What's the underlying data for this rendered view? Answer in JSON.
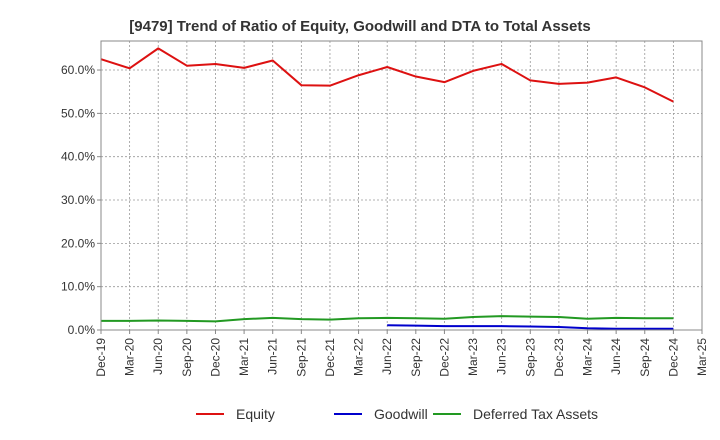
{
  "chart_data": {
    "type": "line",
    "title": "[9479]  Trend of Ratio of Equity, Goodwill and DTA to Total Assets",
    "xlabel": "",
    "ylabel": "",
    "ylim": [
      0,
      66.7
    ],
    "y_ticks": [
      "0.0%",
      "10.0%",
      "20.0%",
      "30.0%",
      "40.0%",
      "50.0%",
      "60.0%"
    ],
    "y_tick_values": [
      0,
      10,
      20,
      30,
      40,
      50,
      60
    ],
    "grid": true,
    "legend_position": "bottom",
    "categories": [
      "Dec-19",
      "Mar-20",
      "Jun-20",
      "Sep-20",
      "Dec-20",
      "Mar-21",
      "Jun-21",
      "Sep-21",
      "Dec-21",
      "Mar-22",
      "Jun-22",
      "Sep-22",
      "Dec-22",
      "Mar-23",
      "Jun-23",
      "Sep-23",
      "Dec-23",
      "Mar-24",
      "Jun-24",
      "Sep-24",
      "Dec-24",
      "Mar-25"
    ],
    "series": [
      {
        "name": "Equity",
        "color": "#dd1111",
        "values": [
          62.5,
          60.4,
          65.0,
          61.0,
          61.4,
          60.5,
          62.2,
          56.5,
          56.4,
          58.8,
          60.7,
          58.5,
          57.2,
          59.8,
          61.4,
          57.6,
          56.8,
          57.1,
          58.3,
          56.0,
          52.7,
          null
        ]
      },
      {
        "name": "Goodwill",
        "color": "#0000cc",
        "values": [
          null,
          null,
          null,
          null,
          null,
          null,
          null,
          null,
          null,
          null,
          1.1,
          1.0,
          0.9,
          0.9,
          0.9,
          0.8,
          0.7,
          0.4,
          0.3,
          0.3,
          0.3,
          null
        ]
      },
      {
        "name": "Deferred Tax Assets",
        "color": "#229922",
        "values": [
          2.1,
          2.1,
          2.2,
          2.1,
          2.0,
          2.5,
          2.8,
          2.5,
          2.4,
          2.7,
          2.8,
          2.7,
          2.6,
          3.0,
          3.2,
          3.1,
          3.0,
          2.6,
          2.8,
          2.7,
          2.7,
          null
        ]
      }
    ]
  }
}
